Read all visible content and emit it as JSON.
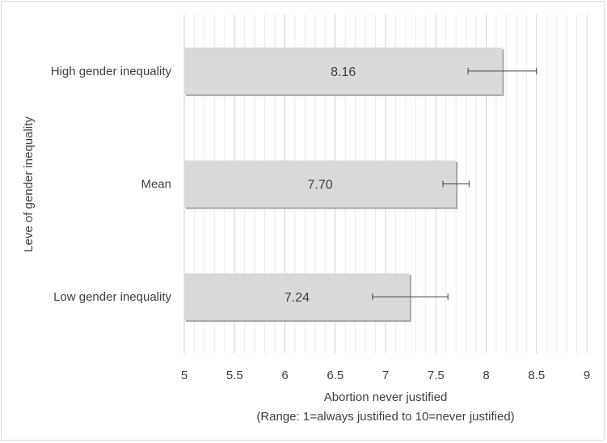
{
  "chart_data": {
    "type": "bar",
    "orientation": "horizontal",
    "categories": [
      "High gender inequality",
      "Mean",
      "Low gender inequality"
    ],
    "values": [
      8.16,
      7.7,
      7.24
    ],
    "value_labels": [
      "8.16",
      "7.70",
      "7.24"
    ],
    "error_bars": [
      [
        7.82,
        8.5
      ],
      [
        7.57,
        7.83
      ],
      [
        6.87,
        7.62
      ]
    ],
    "xlabel": "Abortion never justified",
    "xlabel_sub": "(Range: 1=always justified to 10=never justified)",
    "ylabel": "Leve of gender inequality",
    "xlim": [
      5,
      9
    ],
    "xticks": [
      "5",
      "5.5",
      "6",
      "6.5",
      "7",
      "7.5",
      "8",
      "8.5",
      "9"
    ],
    "grid": "vertical",
    "bar_color": "#d9d9d9",
    "grid_color": "#d9d9d9",
    "text_color": "#404040"
  }
}
